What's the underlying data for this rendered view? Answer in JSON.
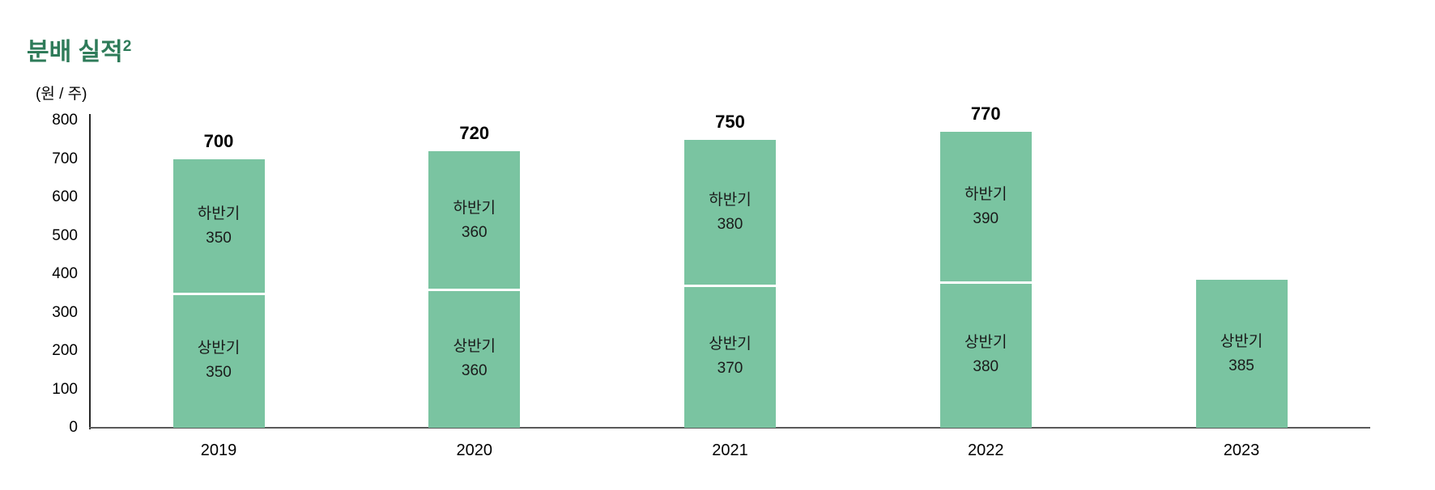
{
  "title": {
    "text": "분배 실적",
    "superscript": "2"
  },
  "chart_data": {
    "type": "bar",
    "stacked": true,
    "title": "분배 실적²",
    "unit_label": "(원 / 주)",
    "categories": [
      "2019",
      "2020",
      "2021",
      "2022",
      "2023"
    ],
    "series": [
      {
        "name": "상반기",
        "values": [
          350,
          360,
          370,
          380,
          385
        ]
      },
      {
        "name": "하반기",
        "values": [
          350,
          360,
          380,
          390,
          null
        ]
      }
    ],
    "totals": [
      700,
      720,
      750,
      770,
      null
    ],
    "ylim": [
      0,
      800
    ],
    "y_ticks": [
      0,
      100,
      200,
      300,
      400,
      500,
      600,
      700,
      800
    ],
    "grid": false,
    "legend": "none",
    "colors": {
      "bar": "#7AC4A1",
      "divider": "#FFFFFF",
      "title": "#2E7B59",
      "x_axis": "#595959",
      "y_axis": "#262626",
      "text": "#000000",
      "segment_text": "#1A1A1A"
    }
  }
}
